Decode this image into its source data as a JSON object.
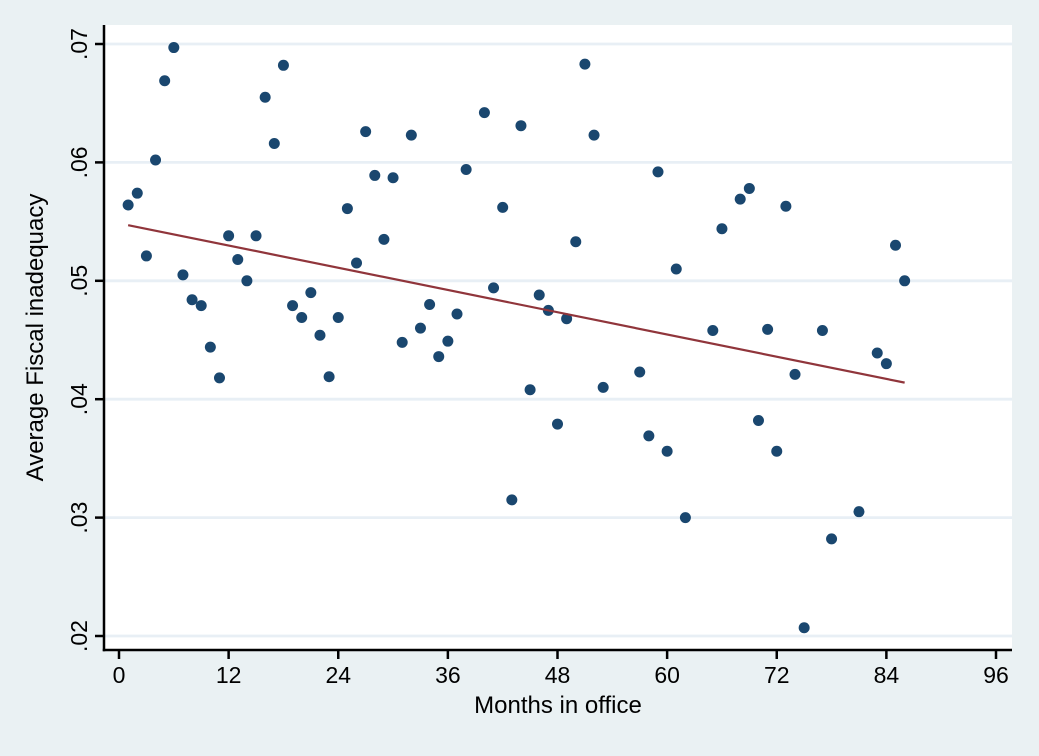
{
  "chart_data": {
    "type": "scatter",
    "title": "",
    "xlabel": "Months in office",
    "ylabel": "Average Fiscal inadequacy",
    "xlim": [
      0,
      96
    ],
    "ylim": [
      0.02,
      0.07
    ],
    "x_ticks": [
      0,
      12,
      24,
      36,
      48,
      60,
      72,
      84,
      96
    ],
    "y_ticks": [
      0.02,
      0.03,
      0.04,
      0.05,
      0.06,
      0.07
    ],
    "y_tick_labels": [
      ".02",
      ".03",
      ".04",
      ".05",
      ".06",
      ".07"
    ],
    "grid": "horizontal",
    "legend": "none",
    "points": [
      [
        1,
        0.0564
      ],
      [
        2,
        0.0574
      ],
      [
        3,
        0.0521
      ],
      [
        4,
        0.0602
      ],
      [
        5,
        0.0669
      ],
      [
        6,
        0.0697
      ],
      [
        7,
        0.0505
      ],
      [
        8,
        0.0484
      ],
      [
        9,
        0.0479
      ],
      [
        10,
        0.0444
      ],
      [
        11,
        0.0418
      ],
      [
        12,
        0.0538
      ],
      [
        13,
        0.0518
      ],
      [
        14,
        0.05
      ],
      [
        15,
        0.0538
      ],
      [
        16,
        0.0655
      ],
      [
        17,
        0.0616
      ],
      [
        18,
        0.0682
      ],
      [
        19,
        0.0479
      ],
      [
        20,
        0.0469
      ],
      [
        21,
        0.049
      ],
      [
        22,
        0.0454
      ],
      [
        23,
        0.0419
      ],
      [
        24,
        0.0469
      ],
      [
        25,
        0.0561
      ],
      [
        26,
        0.0515
      ],
      [
        27,
        0.0626
      ],
      [
        28,
        0.0589
      ],
      [
        29,
        0.0535
      ],
      [
        30,
        0.0587
      ],
      [
        31,
        0.0448
      ],
      [
        32,
        0.0623
      ],
      [
        33,
        0.046
      ],
      [
        34,
        0.048
      ],
      [
        35,
        0.0436
      ],
      [
        36,
        0.0449
      ],
      [
        37,
        0.0472
      ],
      [
        38,
        0.0594
      ],
      [
        40,
        0.0642
      ],
      [
        41,
        0.0494
      ],
      [
        42,
        0.0562
      ],
      [
        43,
        0.0315
      ],
      [
        44,
        0.0631
      ],
      [
        45,
        0.0408
      ],
      [
        46,
        0.0488
      ],
      [
        47,
        0.0475
      ],
      [
        48,
        0.0379
      ],
      [
        49,
        0.0468
      ],
      [
        50,
        0.0533
      ],
      [
        51,
        0.0683
      ],
      [
        52,
        0.0623
      ],
      [
        53,
        0.041
      ],
      [
        57,
        0.0423
      ],
      [
        58,
        0.0369
      ],
      [
        59,
        0.0592
      ],
      [
        60,
        0.0356
      ],
      [
        61,
        0.051
      ],
      [
        62,
        0.03
      ],
      [
        65,
        0.0458
      ],
      [
        66,
        0.0544
      ],
      [
        68,
        0.0569
      ],
      [
        69,
        0.0578
      ],
      [
        70,
        0.0382
      ],
      [
        71,
        0.0459
      ],
      [
        72,
        0.0356
      ],
      [
        73,
        0.0563
      ],
      [
        74,
        0.0421
      ],
      [
        75,
        0.0207
      ],
      [
        77,
        0.0458
      ],
      [
        78,
        0.0282
      ],
      [
        81,
        0.0305
      ],
      [
        83,
        0.0439
      ],
      [
        84,
        0.043
      ],
      [
        85,
        0.053
      ],
      [
        86,
        0.05
      ]
    ],
    "fit_line": {
      "x_start": 1,
      "y_start": 0.0547,
      "x_end": 86,
      "y_end": 0.0414
    },
    "colors": {
      "background": "#eaf1f3",
      "plot_background": "#ffffff",
      "grid": "#e8eff5",
      "marker": "#1a476f",
      "fit_line": "#90353b",
      "axis": "#000000",
      "text": "#000000"
    }
  }
}
